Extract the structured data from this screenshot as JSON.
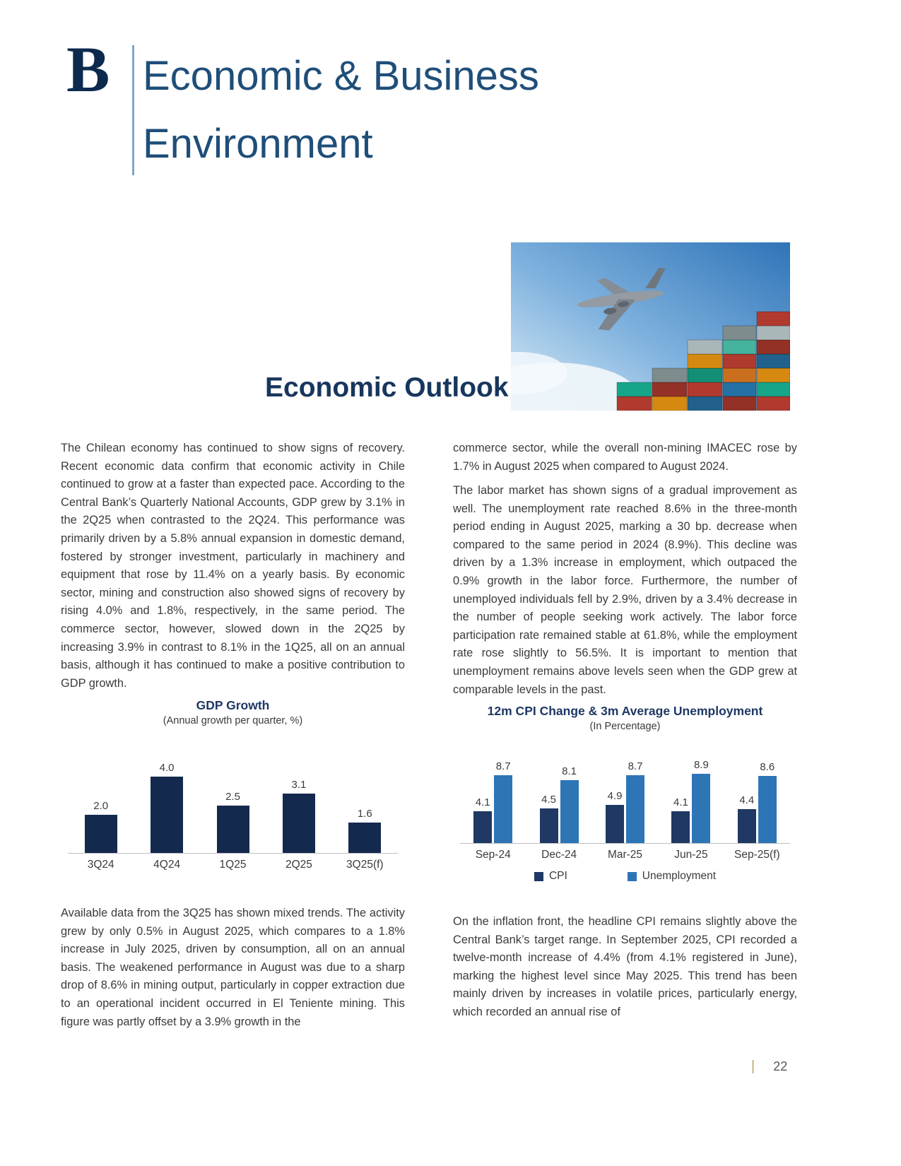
{
  "header": {
    "logo_glyph": "B",
    "title_line1": "Economic & Business",
    "title_line2": "Environment"
  },
  "section": {
    "heading": "Economic Outlook"
  },
  "left_column": {
    "para1": "The Chilean economy has continued to show signs of recovery. Recent economic data confirm that economic activity in Chile continued to grow at a faster than expected pace. According to the Central Bank’s Quarterly National Accounts, GDP grew by 3.1% in the 2Q25 when contrasted to the 2Q24. This performance was primarily driven by a 5.8% annual expansion in domestic demand, fostered by stronger investment, particularly in machinery and equipment that rose by 11.4% on a yearly basis. By economic sector, mining and construction also showed signs of recovery by rising 4.0% and 1.8%, respectively, in the same period. The commerce sector, however, slowed down in the 2Q25 by increasing 3.9% in contrast to 8.1% in the 1Q25, all on an annual basis, although it has continued to make a positive contribution to GDP growth.",
    "para2": "Available data from the 3Q25 has shown mixed trends. The activity grew by only 0.5% in August 2025, which compares to a 1.8% increase in July 2025, driven by consumption, all on an annual basis. The weakened performance in August was due to a sharp drop of 8.6% in mining output, particularly in copper extraction due to an operational incident occurred in El Teniente mining. This figure was partly offset by a 3.9% growth in the"
  },
  "right_column": {
    "para1": "commerce sector, while the overall non-mining IMACEC rose by 1.7% in August 2025 when compared to August 2024.",
    "para2": "The labor market has shown signs of a gradual improvement as well. The unemployment rate reached 8.6% in the three-month period ending in August 2025, marking a 30 bp. decrease when compared to the same period in 2024 (8.9%). This decline was driven by a 1.3% increase in employment, which outpaced the 0.9% growth in the labor force. Furthermore, the number of unemployed individuals fell by 2.9%, driven by a 3.4% decrease in the number of people seeking work actively. The labor force participation rate remained stable at 61.8%, while the employment rate rose slightly to 56.5%. It is important to mention that unemployment remains above levels seen when the GDP grew at comparable levels in the past.",
    "para3": "On the inflation front, the headline CPI remains slightly above the Central Bank’s target range. In September 2025, CPI recorded a twelve-month increase of 4.4% (from 4.1% registered in June), marking the highest level since May 2025. This trend has been mainly driven by increases in volatile prices, particularly energy, which recorded an annual rise of"
  },
  "chart_data": [
    {
      "type": "bar",
      "title": "GDP Growth",
      "subtitle": "(Annual growth per quarter, %)",
      "categories": [
        "3Q24",
        "4Q24",
        "1Q25",
        "2Q25",
        "3Q25(f)"
      ],
      "values": [
        2.0,
        4.0,
        2.5,
        3.1,
        1.6
      ],
      "bar_color": "#14294e",
      "ylim": [
        0,
        4.5
      ],
      "grid": false,
      "legend_position": "none"
    },
    {
      "type": "bar",
      "title": "12m CPI Change & 3m Average Unemployment",
      "subtitle": "(In Percentage)",
      "categories": [
        "Sep-24",
        "Dec-24",
        "Mar-25",
        "Jun-25",
        "Sep-25(f)"
      ],
      "series": [
        {
          "name": "CPI",
          "color": "#1f3864",
          "values": [
            4.1,
            4.5,
            4.9,
            4.1,
            4.4
          ]
        },
        {
          "name": "Unemployment",
          "color": "#2e75b6",
          "values": [
            8.7,
            8.1,
            8.7,
            8.9,
            8.6
          ]
        }
      ],
      "ylim": [
        0,
        10
      ],
      "grid": false,
      "legend_position": "bottom"
    }
  ],
  "colors": {
    "title_blue": "#1f4e79",
    "heading_navy": "#17365d",
    "chart_title_navy": "#1f3864",
    "gdp_bar": "#14294e",
    "cpi_bar": "#1f3864",
    "unemployment_bar": "#2e75b6",
    "footer_accent": "#bda06a"
  },
  "footer": {
    "separator": "|",
    "page_number": "22"
  }
}
